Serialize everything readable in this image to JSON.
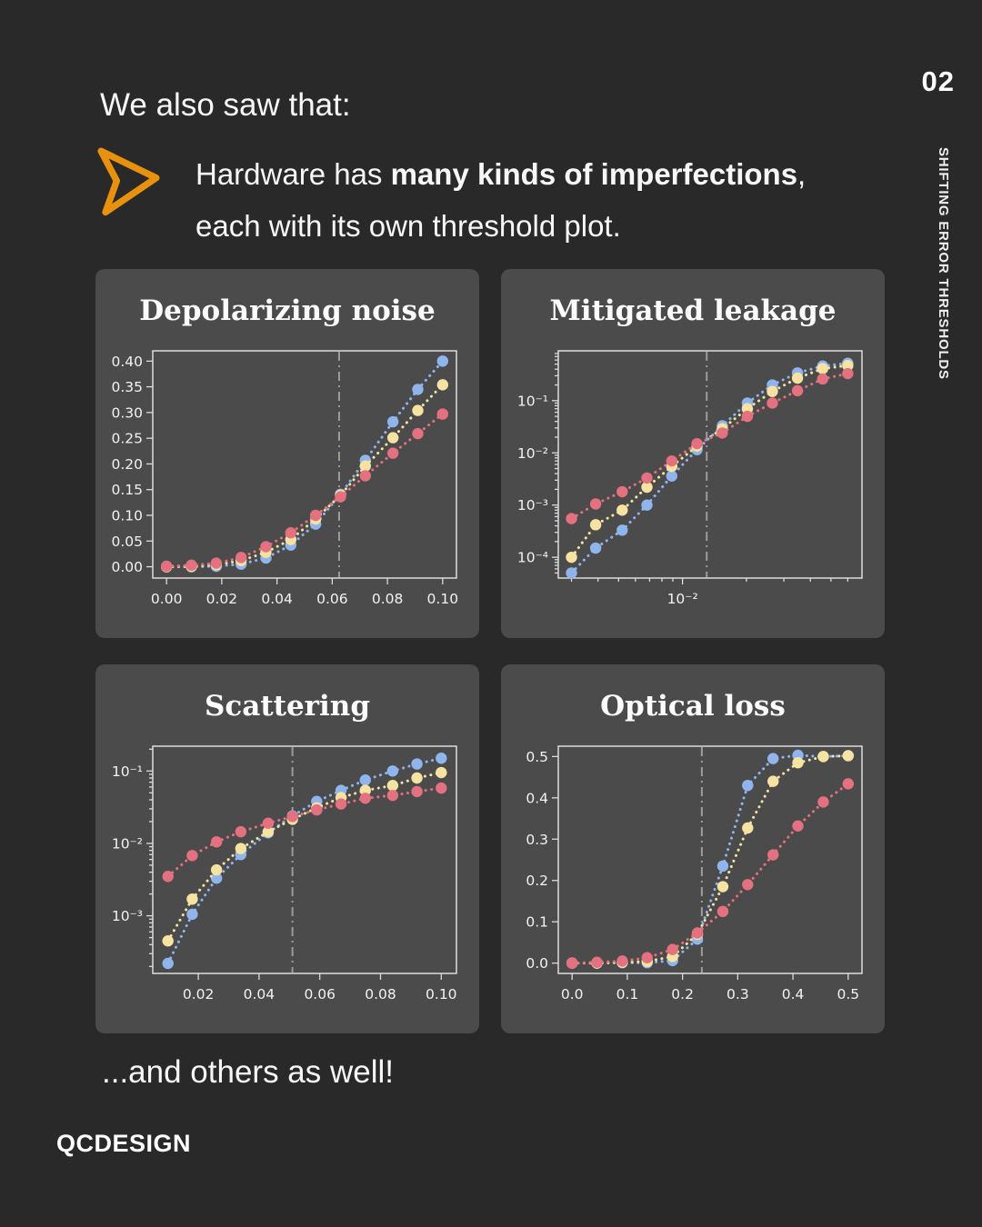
{
  "page": {
    "number": "02",
    "side_title": "SHIFTING ERROR THRESHOLDS",
    "background": "#292929",
    "card_background": "#4B4B4C",
    "accent_orange": "#E8910E"
  },
  "header": {
    "intro": "We also saw that:",
    "bullet": {
      "line1_pre": "Hardware has ",
      "line1_bold": "many kinds of imperfections",
      "line1_post": ",",
      "line2": "each with its own threshold plot."
    }
  },
  "footer": {
    "note": "...and others as well!",
    "logo": "QCDESIGN"
  },
  "palette": {
    "blue": "#8FB5EC",
    "yellow": "#F6E3A2",
    "red": "#E4717F",
    "threshold": "#9C9C9C",
    "axis": "#DCDCDC"
  },
  "chart_data": [
    {
      "type": "scatter",
      "title": "Depolarizing noise",
      "x_scale": "linear",
      "y_scale": "linear",
      "x_range": [
        -0.005,
        0.105
      ],
      "y_range": [
        -0.022,
        0.42
      ],
      "x_ticks": [
        0.0,
        0.02,
        0.04,
        0.06,
        0.08,
        0.1
      ],
      "x_tick_labels": [
        "0.00",
        "0.02",
        "0.04",
        "0.06",
        "0.08",
        "0.10"
      ],
      "y_ticks": [
        0.0,
        0.05,
        0.1,
        0.15,
        0.2,
        0.25,
        0.3,
        0.35,
        0.4
      ],
      "y_tick_labels": [
        "0.00",
        "0.05",
        "0.10",
        "0.15",
        "0.20",
        "0.25",
        "0.30",
        "0.35",
        "0.40"
      ],
      "threshold_x": 0.0625,
      "grid": false,
      "legend": "none",
      "x": [
        0.0,
        0.009,
        0.018,
        0.027,
        0.036,
        0.045,
        0.054,
        0.063,
        0.072,
        0.082,
        0.091,
        0.1
      ],
      "series": [
        {
          "name": "blue",
          "color": "blue",
          "values": [
            0.0,
            0.0,
            0.001,
            0.005,
            0.017,
            0.042,
            0.083,
            0.141,
            0.207,
            0.282,
            0.345,
            0.4
          ]
        },
        {
          "name": "yellow",
          "color": "yellow",
          "values": [
            0.0,
            0.001,
            0.004,
            0.012,
            0.028,
            0.053,
            0.093,
            0.139,
            0.196,
            0.251,
            0.304,
            0.354
          ]
        },
        {
          "name": "red",
          "color": "red",
          "values": [
            0.001,
            0.003,
            0.007,
            0.018,
            0.039,
            0.066,
            0.1,
            0.136,
            0.177,
            0.221,
            0.259,
            0.297
          ]
        }
      ]
    },
    {
      "type": "scatter",
      "title": "Mitigated leakage",
      "x_scale": "log",
      "y_scale": "log",
      "x_range": [
        0.0026,
        0.07
      ],
      "y_range": [
        4e-05,
        0.9
      ],
      "x_ticks": [
        0.01
      ],
      "x_tick_labels": [
        "10⁻²"
      ],
      "y_ticks": [
        0.0001,
        0.001,
        0.01,
        0.1
      ],
      "y_tick_labels": [
        "10⁻⁴",
        "10⁻³",
        "10⁻²",
        "10⁻¹"
      ],
      "threshold_x": 0.013,
      "grid": false,
      "legend": "none",
      "x": [
        0.003,
        0.0039,
        0.0052,
        0.0068,
        0.0089,
        0.0117,
        0.0154,
        0.0202,
        0.0265,
        0.0348,
        0.0457,
        0.06
      ],
      "series": [
        {
          "name": "blue",
          "color": "blue",
          "values": [
            5e-05,
            0.00015,
            0.00033,
            0.001,
            0.0036,
            0.0115,
            0.033,
            0.09,
            0.2,
            0.34,
            0.46,
            0.52
          ]
        },
        {
          "name": "yellow",
          "color": "yellow",
          "values": [
            0.0001,
            0.00042,
            0.0008,
            0.0022,
            0.0055,
            0.0135,
            0.029,
            0.07,
            0.15,
            0.27,
            0.41,
            0.47
          ]
        },
        {
          "name": "red",
          "color": "red",
          "values": [
            0.00055,
            0.00105,
            0.0018,
            0.0033,
            0.007,
            0.015,
            0.024,
            0.05,
            0.09,
            0.155,
            0.26,
            0.33
          ]
        }
      ]
    },
    {
      "type": "scatter",
      "title": "Scattering",
      "x_scale": "linear",
      "y_scale": "log",
      "x_range": [
        0.005,
        0.105
      ],
      "y_range": [
        0.00016,
        0.22
      ],
      "x_ticks": [
        0.02,
        0.04,
        0.06,
        0.08,
        0.1
      ],
      "x_tick_labels": [
        "0.02",
        "0.04",
        "0.06",
        "0.08",
        "0.10"
      ],
      "y_ticks": [
        0.001,
        0.01,
        0.1
      ],
      "y_tick_labels": [
        "10⁻³",
        "10⁻²",
        "10⁻¹"
      ],
      "threshold_x": 0.051,
      "grid": false,
      "legend": "none",
      "x": [
        0.01,
        0.018,
        0.026,
        0.034,
        0.043,
        0.051,
        0.059,
        0.067,
        0.075,
        0.084,
        0.092,
        0.1
      ],
      "series": [
        {
          "name": "blue",
          "color": "blue",
          "values": [
            0.00022,
            0.00105,
            0.0033,
            0.007,
            0.014,
            0.024,
            0.038,
            0.054,
            0.075,
            0.1,
            0.125,
            0.15
          ]
        },
        {
          "name": "yellow",
          "color": "yellow",
          "values": [
            0.00045,
            0.0017,
            0.0043,
            0.0085,
            0.0145,
            0.0215,
            0.031,
            0.043,
            0.054,
            0.063,
            0.08,
            0.095
          ]
        },
        {
          "name": "red",
          "color": "red",
          "values": [
            0.0035,
            0.0068,
            0.0105,
            0.0145,
            0.019,
            0.0235,
            0.029,
            0.035,
            0.042,
            0.046,
            0.052,
            0.058
          ]
        }
      ]
    },
    {
      "type": "scatter",
      "title": "Optical loss",
      "x_scale": "linear",
      "y_scale": "linear",
      "x_range": [
        -0.025,
        0.525
      ],
      "y_range": [
        -0.025,
        0.525
      ],
      "x_ticks": [
        0.0,
        0.1,
        0.2,
        0.3,
        0.4,
        0.5
      ],
      "x_tick_labels": [
        "0.0",
        "0.1",
        "0.2",
        "0.3",
        "0.4",
        "0.5"
      ],
      "y_ticks": [
        0.0,
        0.1,
        0.2,
        0.3,
        0.4,
        0.5
      ],
      "y_tick_labels": [
        "0.0",
        "0.1",
        "0.2",
        "0.3",
        "0.4",
        "0.5"
      ],
      "threshold_x": 0.235,
      "grid": false,
      "legend": "none",
      "x": [
        0.0,
        0.045,
        0.091,
        0.136,
        0.182,
        0.227,
        0.273,
        0.318,
        0.364,
        0.409,
        0.455,
        0.5
      ],
      "series": [
        {
          "name": "blue",
          "color": "blue",
          "values": [
            0.0,
            0.0,
            0.001,
            0.001,
            0.006,
            0.058,
            0.235,
            0.43,
            0.495,
            0.503,
            0.5,
            0.502
          ]
        },
        {
          "name": "yellow",
          "color": "yellow",
          "values": [
            0.0,
            0.0,
            0.002,
            0.004,
            0.016,
            0.07,
            0.185,
            0.327,
            0.44,
            0.485,
            0.5,
            0.502
          ]
        },
        {
          "name": "red",
          "color": "red",
          "values": [
            0.0,
            0.002,
            0.005,
            0.013,
            0.033,
            0.073,
            0.125,
            0.19,
            0.262,
            0.332,
            0.39,
            0.434
          ]
        }
      ]
    }
  ]
}
